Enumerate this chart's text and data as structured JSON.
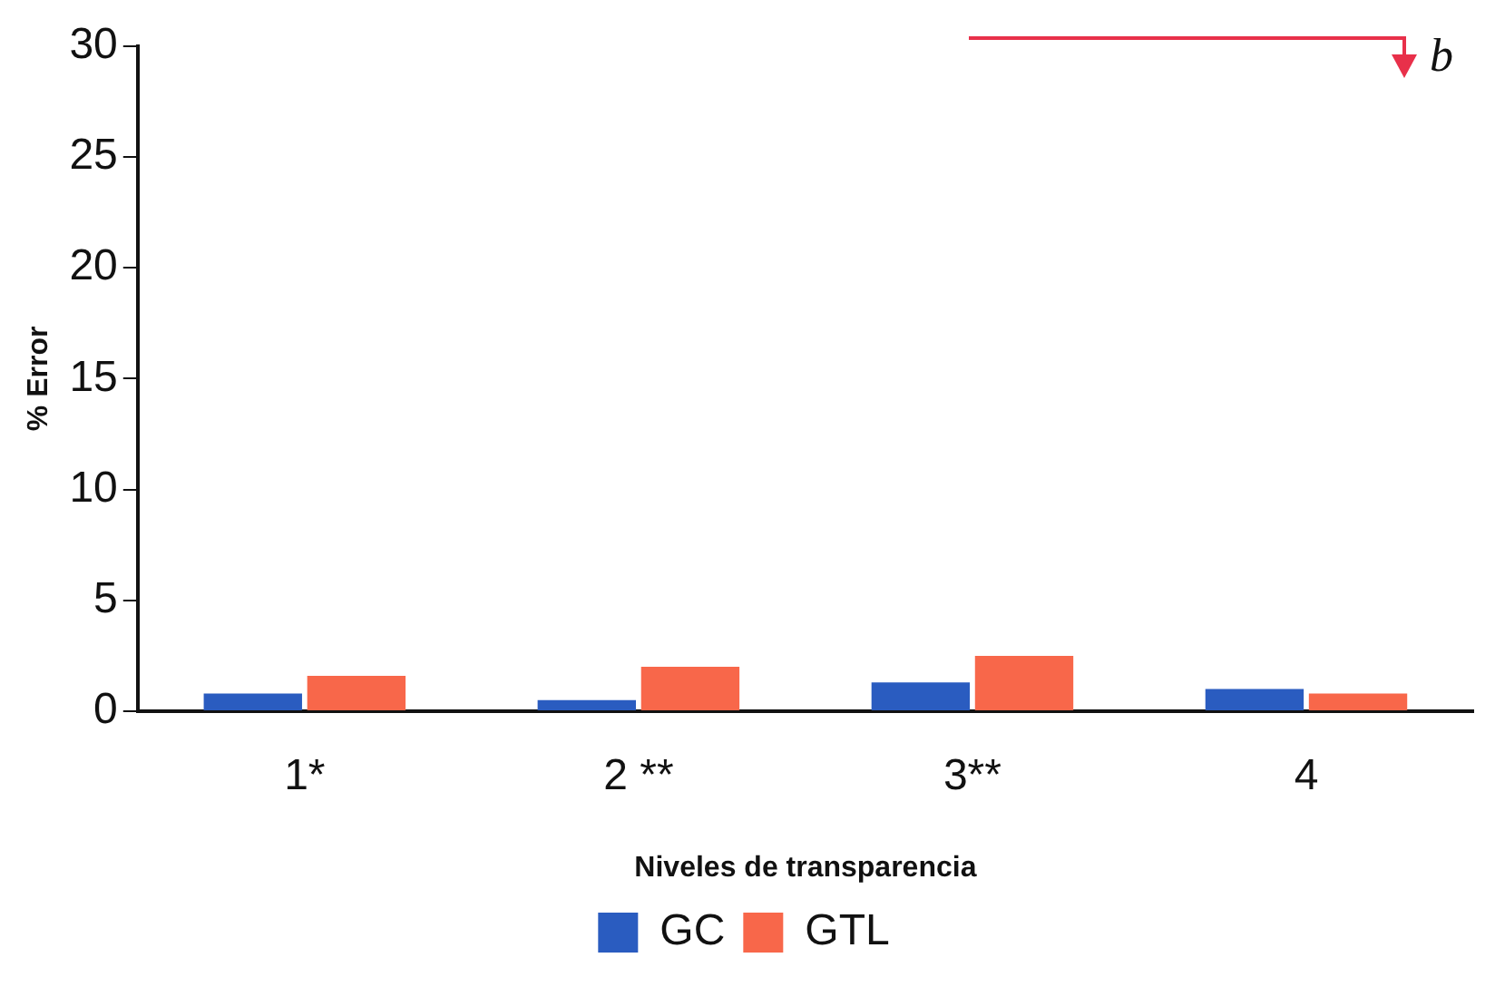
{
  "chart_data": {
    "type": "bar",
    "xlabel": "Niveles de transparencia",
    "ylabel": "% Error",
    "categories": [
      "1*",
      "2 **",
      "3**",
      "4"
    ],
    "series": [
      {
        "name": "GC",
        "color": "#2a5cc0",
        "values": [
          0.8,
          0.5,
          1.3,
          1.0
        ]
      },
      {
        "name": "GTL",
        "color": "#f8674a",
        "values": [
          1.6,
          2.0,
          2.5,
          0.8
        ]
      }
    ],
    "ylim": [
      0,
      30
    ],
    "yticks": [
      0,
      5,
      10,
      15,
      20,
      25,
      30
    ],
    "grid": false,
    "legend": "bottom",
    "annotations": [
      "b"
    ]
  }
}
